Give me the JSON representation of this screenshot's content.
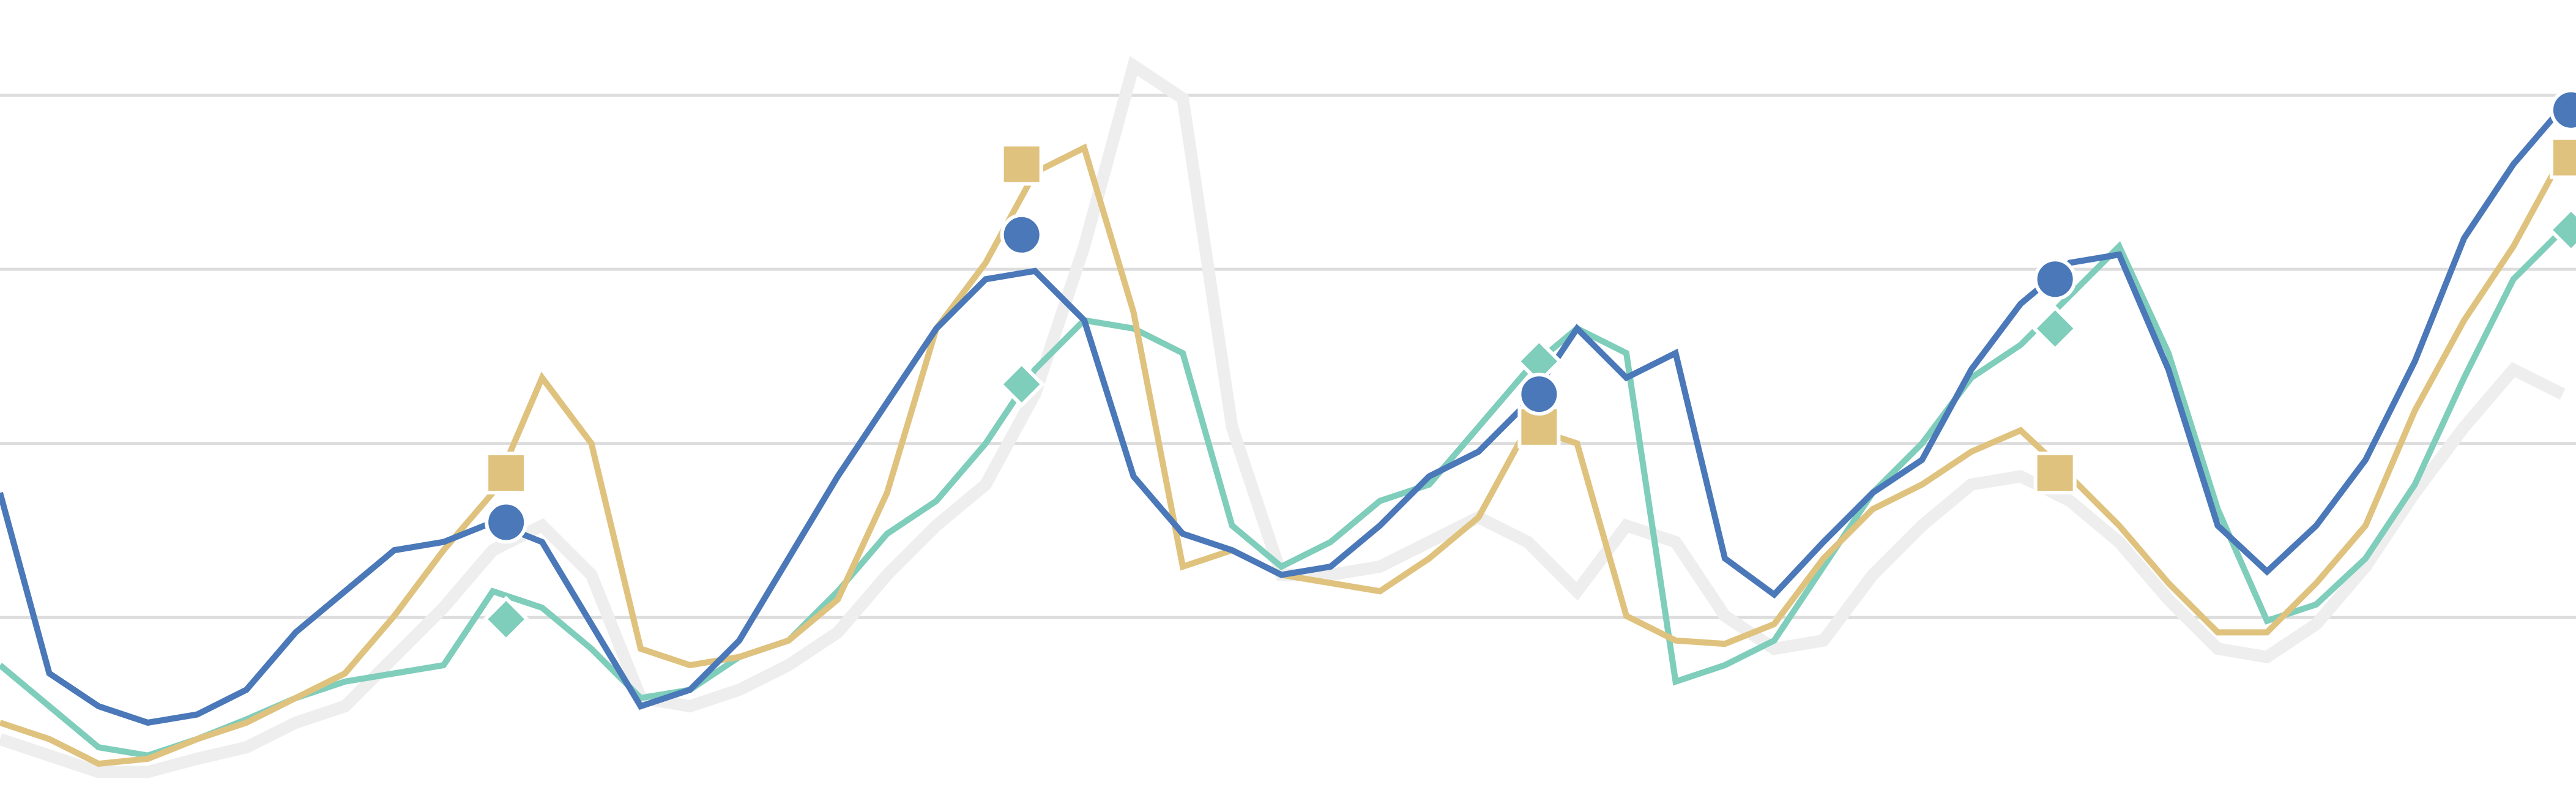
{
  "chart_data": {
    "type": "line",
    "x": [
      0,
      1,
      2,
      3,
      4,
      5,
      6,
      7,
      8,
      9,
      10,
      11,
      12,
      13,
      14,
      15,
      16,
      17,
      18,
      19,
      20,
      21,
      22,
      23,
      24,
      25,
      26,
      27,
      28,
      29,
      30,
      31,
      32,
      33,
      34,
      35,
      36,
      37,
      38,
      39,
      40,
      41,
      42,
      43,
      44,
      45,
      46,
      47,
      48,
      49,
      50,
      51,
      52
    ],
    "xlim": [
      0,
      52.27
    ],
    "ylim": [
      0,
      481
    ],
    "yticks": [
      105,
      211,
      317,
      423
    ],
    "grid": true,
    "series": [
      {
        "color": "#eeeeee",
        "width": 20,
        "values": [
          31,
          21,
          11,
          11,
          19,
          26,
          41,
          51,
          81,
          111,
          146,
          161,
          131,
          56,
          51,
          61,
          76,
          96,
          131,
          161,
          186,
          241,
          331,
          441,
          421,
          221,
          131,
          131,
          136,
          151,
          166,
          151,
          121,
          161,
          151,
          106,
          86,
          91,
          131,
          161,
          186,
          191,
          176,
          151,
          116,
          86,
          81,
          101,
          136,
          181,
          221,
          256,
          241
        ]
      },
      {
        "color": "#7fcdbb",
        "width": 10,
        "marker": "diamond",
        "values": [
          76,
          51,
          26,
          21,
          31,
          43,
          56,
          66,
          71,
          76,
          121,
          111,
          86,
          56,
          61,
          81,
          91,
          121,
          156,
          176,
          211,
          256,
          286,
          281,
          266,
          161,
          136,
          151,
          176,
          186,
          221,
          256,
          281,
          266,
          66,
          76,
          91,
          136,
          181,
          211,
          251,
          271,
          301,
          331,
          266,
          171,
          103,
          113,
          141,
          186,
          251,
          311,
          341
        ],
        "marker_x": [
          10.27,
          20.73,
          31.23,
          41.7,
          52.17
        ],
        "marker_values": [
          104,
          247,
          261,
          281,
          341
        ]
      },
      {
        "color": "#dfc27d",
        "width": 10,
        "marker": "square",
        "values": [
          41,
          31,
          16,
          19,
          31,
          41,
          56,
          71,
          106,
          146,
          181,
          251,
          211,
          86,
          76,
          81,
          91,
          116,
          181,
          281,
          321,
          376,
          391,
          291,
          136,
          146,
          131,
          126,
          121,
          141,
          166,
          221,
          211,
          106,
          91,
          89,
          101,
          141,
          171,
          186,
          206,
          219,
          191,
          161,
          126,
          96,
          96,
          126,
          161,
          231,
          286,
          331,
          386
        ],
        "marker_x": [
          10.27,
          20.73,
          31.23,
          41.7,
          52.17
        ],
        "marker_values": [
          193,
          381,
          221,
          193,
          385
        ]
      },
      {
        "color": "#4a78b8",
        "width": 10,
        "marker": "circle",
        "values": [
          181,
          71,
          51,
          41,
          46,
          61,
          96,
          121,
          146,
          151,
          163,
          151,
          101,
          51,
          61,
          91,
          141,
          191,
          236,
          281,
          311,
          316,
          286,
          191,
          156,
          146,
          131,
          136,
          161,
          191,
          206,
          236,
          281,
          251,
          266,
          141,
          119,
          151,
          181,
          201,
          256,
          296,
          321,
          326,
          256,
          161,
          133,
          161,
          201,
          261,
          336,
          381,
          416
        ],
        "marker_x": [
          10.27,
          20.73,
          31.23,
          41.7,
          52.17
        ],
        "marker_values": [
          163,
          338,
          241,
          311,
          414
        ]
      }
    ]
  }
}
